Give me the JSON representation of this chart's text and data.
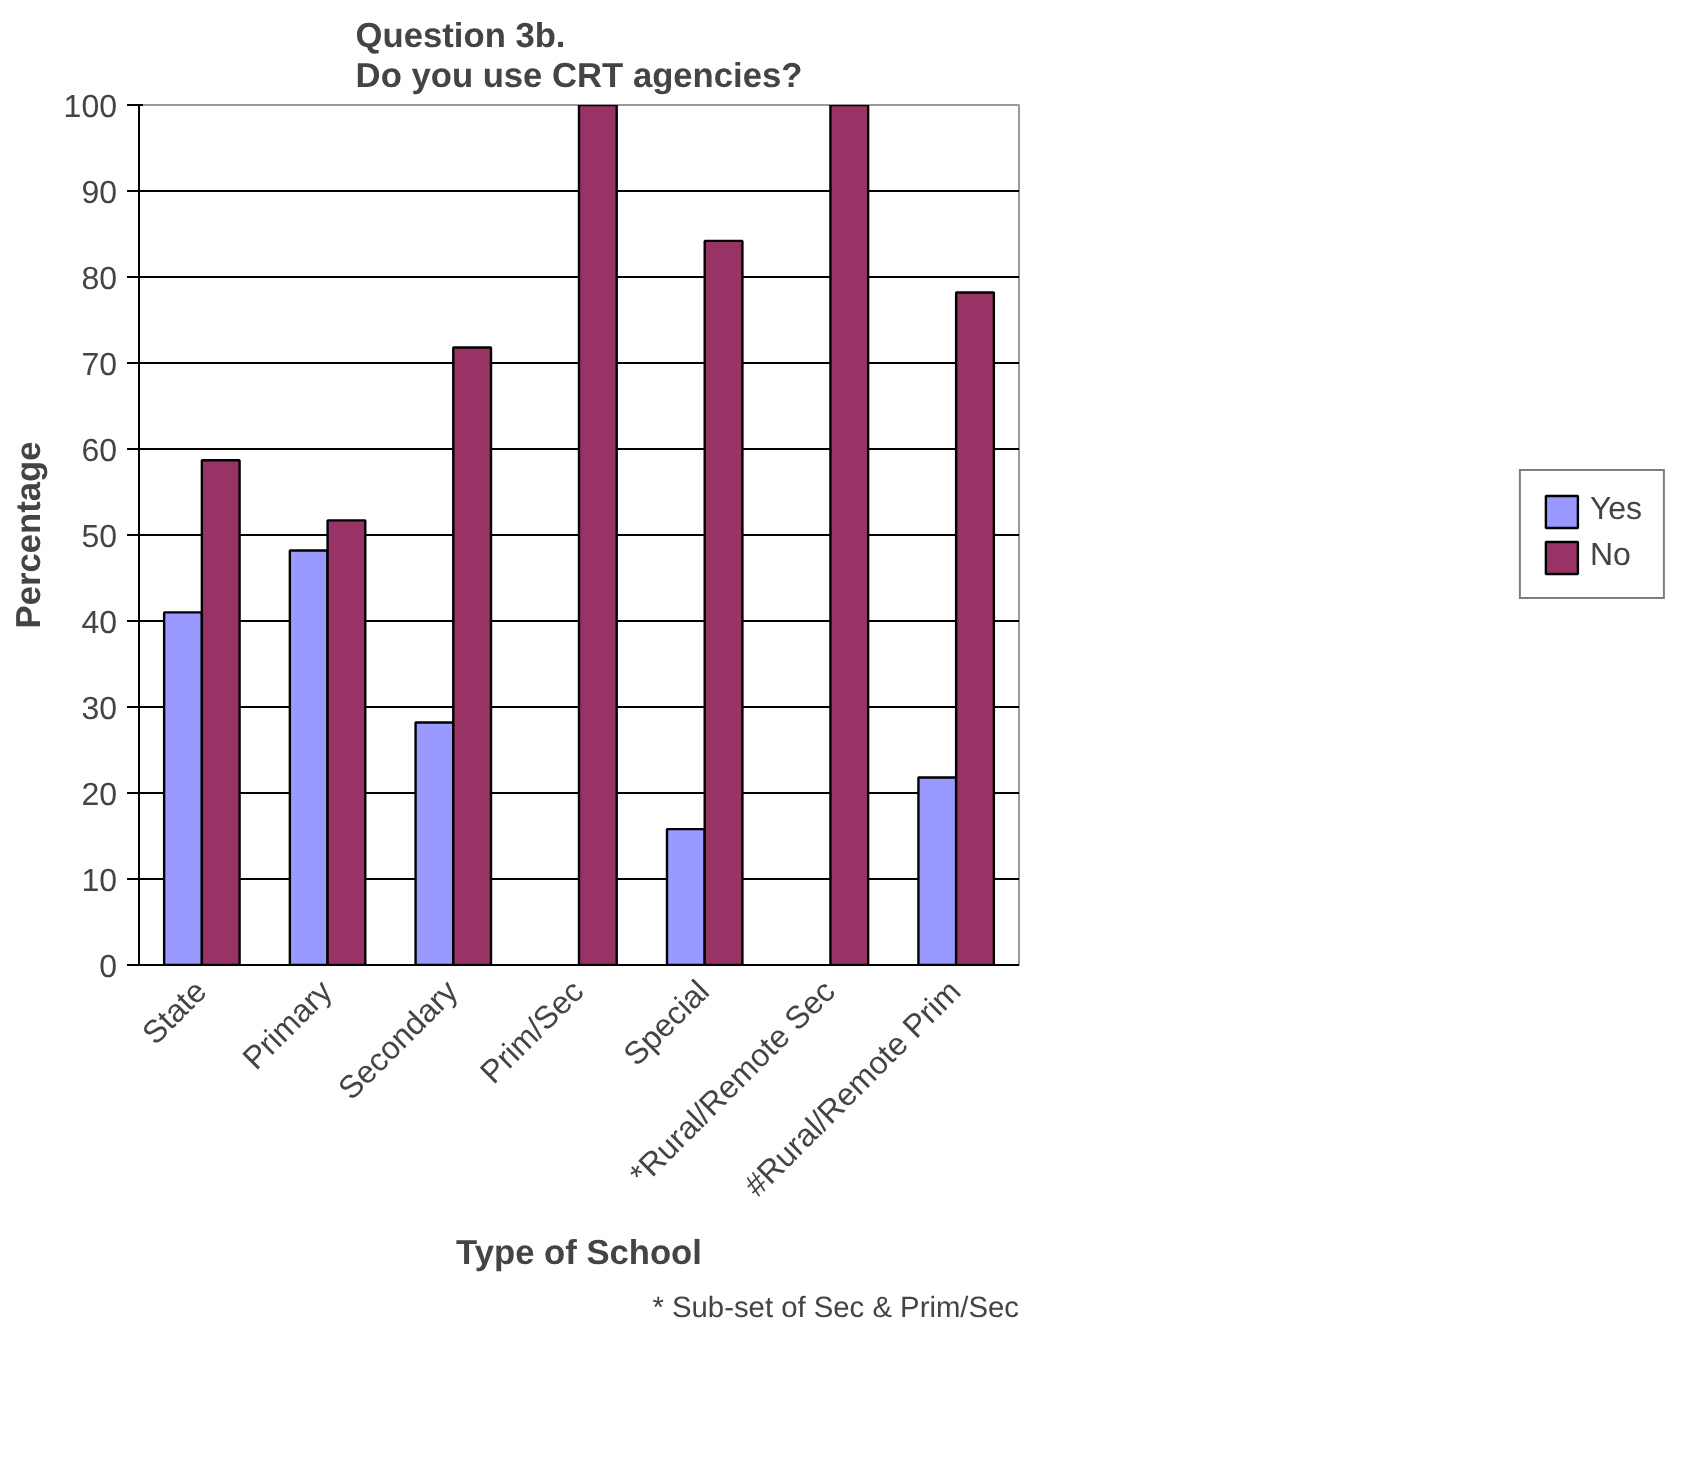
{
  "chart_data": {
    "type": "bar",
    "title": "Question 3b.\nDo you use CRT agencies?",
    "xlabel": "Type of School",
    "ylabel": "Percentage",
    "categories": [
      "State",
      "Primary",
      "Secondary",
      "Prim/Sec",
      "Special",
      "*Rural/Remote Sec",
      "#Rural/Remote Prim"
    ],
    "series": [
      {
        "name": "Yes",
        "color": "#9999ff",
        "values": [
          41,
          48.2,
          28.2,
          0,
          15.8,
          0,
          21.8
        ]
      },
      {
        "name": "No",
        "color": "#993366",
        "values": [
          58.7,
          51.7,
          71.8,
          100,
          84.2,
          100,
          78.2
        ]
      }
    ],
    "ylim": [
      0,
      100
    ],
    "yticks": [
      0,
      10,
      20,
      30,
      40,
      50,
      60,
      70,
      80,
      90,
      100
    ],
    "grid": "y",
    "legend": "right",
    "annotations": [
      "* Sub-set of Sec & Prim/Sec"
    ]
  }
}
